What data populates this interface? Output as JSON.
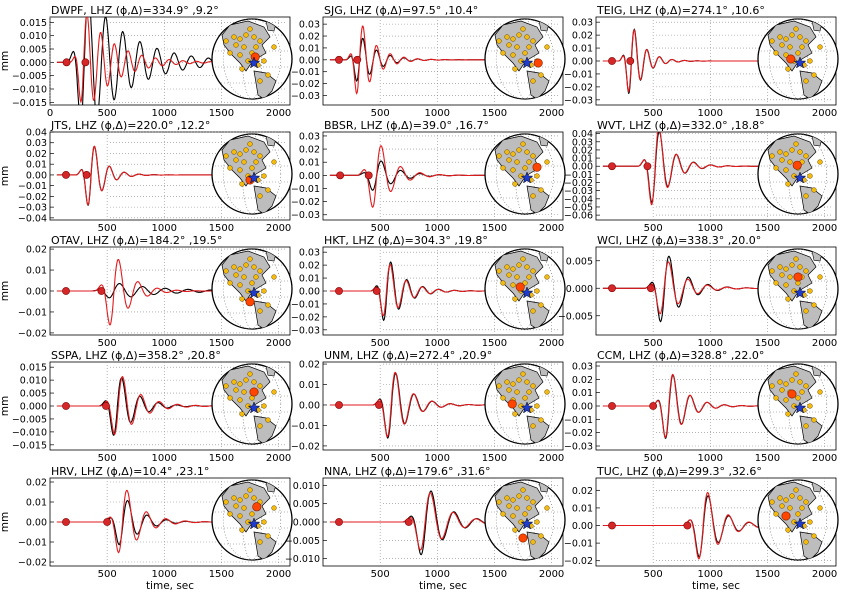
{
  "figure": {
    "ylabel": "mm",
    "xlabel": "time, sec",
    "colors": {
      "observed": "#000000",
      "synthetic": "#e31a1c",
      "marker": "#d62728",
      "star": "#1f3ccf",
      "station": "#f2b90f",
      "highlight": "#ff4500",
      "land": "#bdbdbd"
    }
  },
  "chart_data": [
    {
      "type": "line",
      "title": "DWPF, LHZ (ϕ,Δ)=334.9° ,9.2°",
      "xticks": [
        "0",
        "500",
        "1000",
        "1500",
        "2000"
      ],
      "xlim": [
        0,
        2100
      ],
      "ylim": [
        -0.016,
        0.017
      ],
      "yticks": [
        "0.015",
        "0.010",
        "0.005",
        "0.000",
        "−0.005",
        "−0.010",
        "−0.015"
      ],
      "ytickvals": [
        0.015,
        0.01,
        0.005,
        0,
        -0.005,
        -0.01,
        -0.015
      ],
      "ylabel": "mm",
      "xlabel": "",
      "arrival": [
        145,
        310
      ],
      "obs": {
        "t0": 300,
        "period": 150,
        "amp": 0.028,
        "decay": 380,
        "phase": 0
      },
      "syn": {
        "t0": 300,
        "period": 120,
        "amp": 0.02,
        "decay": 250,
        "phase": 0.3
      },
      "mapHL": [
        0.08,
        -0.05
      ]
    },
    {
      "type": "line",
      "title": "SJG, LHZ (ϕ,Δ)=97.5° ,10.4°",
      "xticks": [
        "500",
        "1000",
        "1500",
        "2000"
      ],
      "xlim": [
        0,
        2100
      ],
      "ylim": [
        -0.038,
        0.036
      ],
      "yticks": [
        "0.03",
        "0.02",
        "0.01",
        "0.00",
        "−0.01",
        "−0.02",
        "−0.03"
      ],
      "ytickvals": [
        0.03,
        0.02,
        0.01,
        0,
        -0.01,
        -0.02,
        -0.03
      ],
      "ylabel": "",
      "xlabel": "",
      "arrival": [
        140,
        300
      ],
      "obs": {
        "t0": 320,
        "period": 120,
        "amp": 0.022,
        "decay": 150,
        "phase": 0
      },
      "syn": {
        "t0": 320,
        "period": 120,
        "amp": 0.035,
        "decay": 140,
        "phase": 0
      },
      "mapHL": [
        0.33,
        0.1
      ]
    },
    {
      "type": "line",
      "title": "TEIG, LHZ (ϕ,Δ)=274.1° ,10.6°",
      "xticks": [
        "500",
        "1000",
        "1500",
        "2000"
      ],
      "xlim": [
        0,
        2100
      ],
      "ylim": [
        -0.034,
        0.034
      ],
      "yticks": [
        "0.03",
        "0.02",
        "0.01",
        "0.00",
        "−0.01",
        "−0.02",
        "−0.03"
      ],
      "ytickvals": [
        0.03,
        0.02,
        0.01,
        0,
        -0.01,
        -0.02,
        -0.03
      ],
      "ylabel": "",
      "xlabel": "",
      "arrival": [
        140,
        300
      ],
      "obs": {
        "t0": 310,
        "period": 110,
        "amp": 0.031,
        "decay": 110,
        "phase": 0
      },
      "syn": {
        "t0": 310,
        "period": 110,
        "amp": 0.03,
        "decay": 110,
        "phase": 0.1
      },
      "mapHL": [
        -0.18,
        0.0
      ]
    },
    {
      "type": "line",
      "title": "JTS, LHZ (ϕ,Δ)=220.0° ,12.2°",
      "xticks": [
        "500",
        "1000",
        "1500",
        "2000"
      ],
      "xlim": [
        0,
        2100
      ],
      "ylim": [
        -0.042,
        0.04
      ],
      "yticks": [
        "0.04",
        "0.03",
        "0.02",
        "0.01",
        "0.00",
        "−0.01",
        "−0.02",
        "−0.03",
        "−0.04"
      ],
      "ytickvals": [
        0.04,
        0.03,
        0.02,
        0.01,
        0,
        -0.01,
        -0.02,
        -0.03,
        -0.04
      ],
      "ylabel": "mm",
      "xlabel": "",
      "arrival": [
        140,
        320
      ],
      "obs": {
        "t0": 360,
        "period": 130,
        "amp": 0.035,
        "decay": 110,
        "phase": 0
      },
      "syn": {
        "t0": 360,
        "period": 130,
        "amp": 0.035,
        "decay": 110,
        "phase": 0.05
      },
      "mapHL": [
        -0.05,
        0.15
      ]
    },
    {
      "type": "line",
      "title": "BBSR, LHZ (ϕ,Δ)=39.0° ,16.7°",
      "xticks": [
        "500",
        "1000",
        "1500",
        "2000"
      ],
      "xlim": [
        0,
        2100
      ],
      "ylim": [
        -0.034,
        0.033
      ],
      "yticks": [
        "0.03",
        "0.02",
        "0.01",
        "0.00",
        "−0.01",
        "−0.02",
        "−0.03"
      ],
      "ytickvals": [
        0.03,
        0.02,
        0.01,
        0,
        -0.01,
        -0.02,
        -0.03
      ],
      "ylabel": "",
      "xlabel": "",
      "arrival": [
        150,
        400
      ],
      "obs": {
        "t0": 470,
        "period": 170,
        "amp": 0.014,
        "decay": 160,
        "phase": 0
      },
      "syn": {
        "t0": 470,
        "period": 170,
        "amp": 0.03,
        "decay": 140,
        "phase": 0
      },
      "mapHL": [
        0.3,
        -0.17
      ]
    },
    {
      "type": "line",
      "title": "WVT, LHZ (ϕ,Δ)=332.0° ,18.8°",
      "xticks": [
        "500",
        "1000",
        "1500",
        "2000"
      ],
      "xlim": [
        0,
        2100
      ],
      "ylim": [
        -0.066,
        0.042
      ],
      "yticks": [
        "0.04",
        "0.03",
        "0.02",
        "0.01",
        "0.00",
        "−0.01",
        "−0.02",
        "−0.03",
        "−0.04",
        "−0.05",
        "−0.06"
      ],
      "ytickvals": [
        0.04,
        0.03,
        0.02,
        0.01,
        0,
        -0.01,
        -0.02,
        -0.03,
        -0.04,
        -0.05,
        -0.06
      ],
      "ylabel": "",
      "xlabel": "",
      "arrival": [
        140,
        450
      ],
      "obs": {
        "t0": 520,
        "period": 150,
        "amp": 0.055,
        "decay": 140,
        "phase": 0
      },
      "syn": {
        "t0": 520,
        "period": 150,
        "amp": 0.06,
        "decay": 130,
        "phase": 0.1
      },
      "mapHL": [
        -0.02,
        -0.22
      ]
    },
    {
      "type": "line",
      "title": "OTAV, LHZ (ϕ,Δ)=184.2° ,19.5°",
      "xticks": [
        "500",
        "1000",
        "1500",
        "2000"
      ],
      "xlim": [
        0,
        2100
      ],
      "ylim": [
        -0.021,
        0.021
      ],
      "yticks": [
        "0.02",
        "0.01",
        "0.00",
        "−0.01",
        "−0.02"
      ],
      "ytickvals": [
        0.02,
        0.01,
        0,
        -0.01,
        -0.02
      ],
      "ylabel": "mm",
      "xlabel": "",
      "arrival": [
        140,
        450
      ],
      "obs": {
        "t0": 560,
        "period": 200,
        "amp": 0.004,
        "decay": 400,
        "phase": 0
      },
      "syn": {
        "t0": 560,
        "period": 170,
        "amp": 0.02,
        "decay": 140,
        "phase": 0
      },
      "mapHL": [
        -0.05,
        0.32
      ]
    },
    {
      "type": "line",
      "title": "HKT, LHZ (ϕ,Δ)=304.3° ,19.8°",
      "xticks": [
        "500",
        "1000",
        "1500",
        "2000"
      ],
      "xlim": [
        0,
        2100
      ],
      "ylim": [
        -0.034,
        0.034
      ],
      "yticks": [
        "0.03",
        "0.02",
        "0.01",
        "0.00",
        "−0.01",
        "−0.02",
        "−0.03"
      ],
      "ytickvals": [
        0.03,
        0.02,
        0.01,
        0,
        -0.01,
        -0.02,
        -0.03
      ],
      "ylabel": "",
      "xlabel": "",
      "arrival": [
        140,
        470
      ],
      "obs": {
        "t0": 560,
        "period": 140,
        "amp": 0.028,
        "decay": 150,
        "phase": 0
      },
      "syn": {
        "t0": 560,
        "period": 140,
        "amp": 0.025,
        "decay": 150,
        "phase": 0.2
      },
      "mapHL": [
        -0.12,
        -0.05
      ]
    },
    {
      "type": "line",
      "title": "WCI, LHZ (ϕ,Δ)=338.3° ,20.0°",
      "xticks": [
        "500",
        "1000",
        "1500",
        "2000"
      ],
      "xlim": [
        0,
        2100
      ],
      "ylim": [
        -0.0085,
        0.0075
      ],
      "yticks": [
        "0.005",
        "0.000",
        "−0.005"
      ],
      "ytickvals": [
        0.005,
        0,
        -0.005
      ],
      "ylabel": "",
      "xlabel": "",
      "arrival": [
        140,
        480
      ],
      "obs": {
        "t0": 600,
        "period": 170,
        "amp": 0.0075,
        "decay": 160,
        "phase": 0
      },
      "syn": {
        "t0": 600,
        "period": 170,
        "amp": 0.006,
        "decay": 160,
        "phase": 0.15
      },
      "mapHL": [
        0.0,
        -0.3
      ]
    },
    {
      "type": "line",
      "title": "SSPA, LHZ (ϕ,Δ)=358.2° ,20.8°",
      "xticks": [
        "500",
        "1000",
        "1500",
        "2000"
      ],
      "xlim": [
        0,
        2100
      ],
      "ylim": [
        -0.017,
        0.017
      ],
      "yticks": [
        "0.015",
        "0.010",
        "0.005",
        "0.000",
        "−0.005",
        "−0.010",
        "−0.015"
      ],
      "ytickvals": [
        0.015,
        0.01,
        0.005,
        0,
        -0.005,
        -0.01,
        -0.015
      ],
      "ylabel": "mm",
      "xlabel": "",
      "arrival": [
        140,
        490
      ],
      "obs": {
        "t0": 590,
        "period": 160,
        "amp": 0.014,
        "decay": 150,
        "phase": 0
      },
      "syn": {
        "t0": 600,
        "period": 160,
        "amp": 0.014,
        "decay": 170,
        "phase": 0.1
      },
      "mapHL": [
        0.05,
        -0.3
      ]
    },
    {
      "type": "line",
      "title": "UNM, LHZ (ϕ,Δ)=272.4° ,20.9°",
      "xticks": [
        "500",
        "1000",
        "1500",
        "2000"
      ],
      "xlim": [
        0,
        2100
      ],
      "ylim": [
        -0.022,
        0.021
      ],
      "yticks": [
        "0.02",
        "0.01",
        "0.00",
        "−0.01",
        "−0.02"
      ],
      "ytickvals": [
        0.02,
        0.01,
        0,
        -0.01,
        -0.02
      ],
      "ylabel": "",
      "xlabel": "",
      "arrival": [
        140,
        490
      ],
      "obs": {
        "t0": 600,
        "period": 160,
        "amp": 0.02,
        "decay": 150,
        "phase": 0
      },
      "syn": {
        "t0": 600,
        "period": 160,
        "amp": 0.02,
        "decay": 150,
        "phase": 0.15
      },
      "mapHL": [
        -0.32,
        0.0
      ]
    },
    {
      "type": "line",
      "title": "CCM, LHZ (ϕ,Δ)=328.8° ,22.0°",
      "xticks": [
        "500",
        "1000",
        "1500",
        "2000"
      ],
      "xlim": [
        0,
        2100
      ],
      "ylim": [
        -0.033,
        0.033
      ],
      "yticks": [
        "0.03",
        "0.02",
        "0.01",
        "0.00",
        "−0.01",
        "−0.02",
        "−0.03"
      ],
      "ytickvals": [
        0.03,
        0.02,
        0.01,
        0,
        -0.01,
        -0.02,
        -0.03
      ],
      "ylabel": "",
      "xlabel": "",
      "arrival": [
        140,
        500
      ],
      "obs": {
        "t0": 640,
        "period": 150,
        "amp": 0.03,
        "decay": 140,
        "phase": 0
      },
      "syn": {
        "t0": 640,
        "period": 150,
        "amp": 0.03,
        "decay": 140,
        "phase": 0.1
      },
      "mapHL": [
        -0.15,
        -0.25
      ]
    },
    {
      "type": "line",
      "title": "HRV, LHZ (ϕ,Δ)=10.4° ,23.1°",
      "xticks": [
        "500",
        "1000",
        "1500",
        "2000"
      ],
      "xlim": [
        0,
        2100
      ],
      "ylim": [
        -0.022,
        0.022
      ],
      "yticks": [
        "0.02",
        "0.01",
        "0.00",
        "−0.01",
        "−0.02"
      ],
      "ytickvals": [
        0.02,
        0.01,
        0,
        -0.01,
        -0.02
      ],
      "ylabel": "mm",
      "xlabel": "time, sec",
      "arrival": [
        140,
        500
      ],
      "obs": {
        "t0": 640,
        "period": 170,
        "amp": 0.014,
        "decay": 150,
        "phase": 0
      },
      "syn": {
        "t0": 640,
        "period": 170,
        "amp": 0.02,
        "decay": 150,
        "phase": 0.2
      },
      "mapHL": [
        0.12,
        -0.33
      ]
    },
    {
      "type": "line",
      "title": "NNA, LHZ (ϕ,Δ)=179.6° ,31.6°",
      "xticks": [
        "500",
        "1000",
        "1500",
        "2000"
      ],
      "xlim": [
        0,
        2100
      ],
      "ylim": [
        -0.012,
        0.012
      ],
      "yticks": [
        "0.010",
        "0.005",
        "0.000",
        "−0.005",
        "−0.010"
      ],
      "ytickvals": [
        0.01,
        0.005,
        0,
        -0.005,
        -0.01
      ],
      "ylabel": "",
      "xlabel": "time, sec",
      "arrival": [
        140,
        750
      ],
      "obs": {
        "t0": 900,
        "period": 200,
        "amp": 0.011,
        "decay": 180,
        "phase": 0
      },
      "syn": {
        "t0": 900,
        "period": 200,
        "amp": 0.01,
        "decay": 180,
        "phase": 0.2
      },
      "mapHL": [
        -0.05,
        0.45
      ]
    },
    {
      "type": "line",
      "title": "TUC, LHZ (ϕ,Δ)=299.3° ,32.6°",
      "xticks": [
        "500",
        "1000",
        "1500",
        "2000"
      ],
      "xlim": [
        0,
        2100
      ],
      "ylim": [
        -0.023,
        0.027
      ],
      "yticks": [
        "0.02",
        "0.01",
        "0.00",
        "−0.01",
        "−0.02"
      ],
      "ytickvals": [
        0.02,
        0.01,
        0,
        -0.01,
        -0.02
      ],
      "ylabel": "",
      "xlabel": "time, sec",
      "arrival": [
        140,
        800
      ],
      "obs": {
        "t0": 940,
        "period": 180,
        "amp": 0.022,
        "decay": 160,
        "phase": 0
      },
      "syn": {
        "t0": 940,
        "period": 180,
        "amp": 0.024,
        "decay": 160,
        "phase": 0.1
      },
      "mapHL": [
        -0.3,
        -0.1
      ]
    }
  ]
}
